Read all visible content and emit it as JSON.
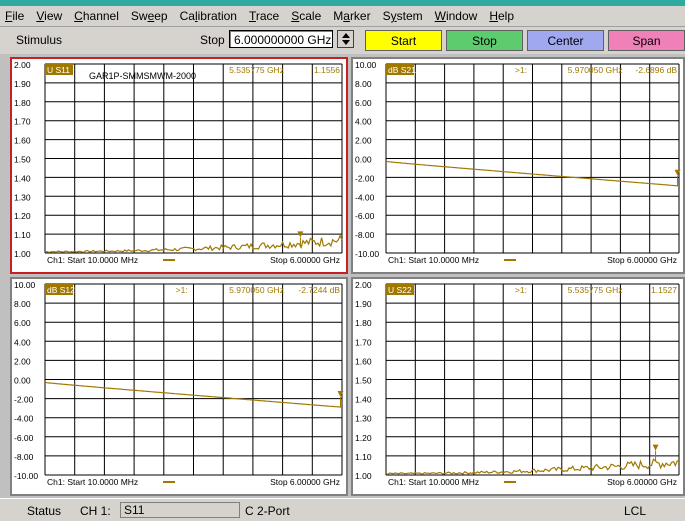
{
  "menu": [
    {
      "pre": "",
      "acc": "F",
      "post": "ile"
    },
    {
      "pre": "",
      "acc": "V",
      "post": "iew"
    },
    {
      "pre": "",
      "acc": "C",
      "post": "hannel"
    },
    {
      "pre": "Sw",
      "acc": "e",
      "post": "ep"
    },
    {
      "pre": "Ca",
      "acc": "l",
      "post": "ibration"
    },
    {
      "pre": "",
      "acc": "T",
      "post": "race"
    },
    {
      "pre": "",
      "acc": "S",
      "post": "cale"
    },
    {
      "pre": "M",
      "acc": "a",
      "post": "rker"
    },
    {
      "pre": "S",
      "acc": "y",
      "post": "stem"
    },
    {
      "pre": "",
      "acc": "W",
      "post": "indow"
    },
    {
      "pre": "",
      "acc": "H",
      "post": "elp"
    }
  ],
  "toolbar": {
    "stimulus_label": "Stimulus",
    "stop_label": "Stop",
    "stop_value": "6.000000000 GHz",
    "buttons": [
      {
        "label": "Start",
        "color": "#ffff00"
      },
      {
        "label": "Stop",
        "color": "#5ccc6e"
      },
      {
        "label": "Center",
        "color": "#a0a8f0"
      },
      {
        "label": "Span",
        "color": "#f080b8"
      }
    ]
  },
  "panels": [
    {
      "id": "s11",
      "active": true,
      "yticks": [
        "2.00",
        "1.90",
        "1.80",
        "1.70",
        "1.60",
        "1.50",
        "1.40",
        "1.30",
        "1.20",
        "1.10",
        "1.00"
      ],
      "trace_label": "U S11",
      "title": "GAR1P-SMMSMWM-2000",
      "marker_marks": "",
      "marker_freq": "5.535775 GHz",
      "marker_val": "1.1556",
      "start": "Ch1: Start  10.0000 MHz",
      "stop": "Stop  6.00000 GHz",
      "trace_kind": "noise",
      "marker_pos": 0.86
    },
    {
      "id": "s21",
      "active": false,
      "yticks": [
        "10.00",
        "8.00",
        "6.00",
        "4.00",
        "2.00",
        "0.00",
        "-2.00",
        "-4.00",
        "-6.00",
        "-8.00",
        "-10.00"
      ],
      "trace_label": "dB S21",
      "title": "",
      "marker_marks": ">1:",
      "marker_freq": "5.970050 GHz",
      "marker_val": "-2.6896 dB",
      "start": "Ch1: Start  10.0000 MHz",
      "stop": "Stop  6.00000 GHz",
      "trace_kind": "line",
      "marker_pos": 0.995
    },
    {
      "id": "s12",
      "active": false,
      "yticks": [
        "10.00",
        "8.00",
        "6.00",
        "4.00",
        "2.00",
        "0.00",
        "-2.00",
        "-4.00",
        "-6.00",
        "-8.00",
        "-10.00"
      ],
      "trace_label": "dB S12",
      "title": "",
      "marker_marks": ">1:",
      "marker_freq": "5.970050 GHz",
      "marker_val": "-2.7244 dB",
      "start": "Ch1: Start  10.0000 MHz",
      "stop": "Stop  6.00000 GHz",
      "trace_kind": "line",
      "marker_pos": 0.995
    },
    {
      "id": "s22",
      "active": false,
      "yticks": [
        "2.00",
        "1.90",
        "1.80",
        "1.70",
        "1.60",
        "1.50",
        "1.40",
        "1.30",
        "1.20",
        "1.10",
        "1.00"
      ],
      "trace_label": "U S22",
      "title": "",
      "marker_marks": ">1:",
      "marker_freq": "5.535775 GHz",
      "marker_val": "1.1527",
      "start": "Ch1: Start  10.0000 MHz",
      "stop": "Stop  6.00000 GHz",
      "trace_kind": "noise",
      "marker_pos": 0.92
    }
  ],
  "status": {
    "label": "Status",
    "channel": "CH 1:",
    "param": "S11",
    "cal": "C 2-Port",
    "mode": "LCL"
  },
  "colors": {
    "trace": "#a07800",
    "label_bg": "#a07800",
    "grid": "#000000"
  }
}
